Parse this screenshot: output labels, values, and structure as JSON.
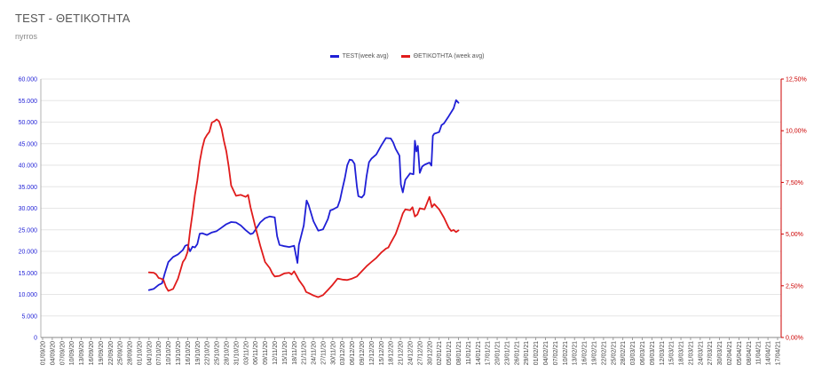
{
  "header": {
    "title": "TEST - ΘΕΤΙΚΟΤΗΤΑ",
    "subtitle": "nyrros"
  },
  "colors": {
    "test": "#1f1fd6",
    "positivity": "#e01b1b",
    "left_axis_text": "#1f1fd6",
    "right_axis_text": "#cc0000",
    "grid": "#e6e6e6"
  },
  "chart_data": {
    "type": "line",
    "title": "TEST - ΘΕΤΙΚΟΤΗΤΑ",
    "subtitle": "nyrros",
    "grid": true,
    "legend_position": "top-center",
    "x_tick_labels": [
      "01/09/20",
      "04/09/20",
      "07/09/20",
      "10/09/20",
      "13/09/20",
      "16/09/20",
      "19/09/20",
      "22/09/20",
      "25/09/20",
      "28/09/20",
      "01/10/20",
      "04/10/20",
      "07/10/20",
      "10/10/20",
      "13/10/20",
      "16/10/20",
      "19/10/20",
      "22/10/20",
      "25/10/20",
      "28/10/20",
      "31/10/20",
      "03/11/20",
      "06/11/20",
      "09/11/20",
      "12/11/20",
      "15/11/20",
      "18/11/20",
      "21/11/20",
      "24/11/20",
      "27/11/20",
      "30/11/20",
      "03/12/20",
      "06/12/20",
      "09/12/20",
      "12/12/20",
      "15/12/20",
      "18/12/20",
      "21/12/20",
      "24/12/20",
      "27/12/20",
      "30/12/20",
      "02/01/21",
      "05/01/21",
      "08/01/21",
      "11/01/21",
      "14/01/21",
      "17/01/21",
      "20/01/21",
      "23/01/21",
      "26/01/21",
      "29/01/21",
      "01/02/21",
      "04/02/21",
      "07/02/21",
      "10/02/21",
      "13/02/21",
      "16/02/21",
      "19/02/21",
      "22/02/21",
      "25/02/21",
      "28/02/21",
      "03/03/21",
      "06/03/21",
      "09/03/21",
      "12/03/21",
      "15/03/21",
      "18/03/21",
      "21/03/21",
      "24/03/21",
      "27/03/21",
      "30/03/21",
      "02/04/21",
      "05/04/21",
      "08/04/21",
      "11/04/21",
      "14/04/21",
      "17/04/21"
    ],
    "y_left": {
      "min": 0,
      "max": 60000,
      "ticks": [
        "0",
        "5.000",
        "10.000",
        "15.000",
        "20.000",
        "25.000",
        "30.000",
        "35.000",
        "40.000",
        "45.000",
        "50.000",
        "55.000",
        "60.000"
      ]
    },
    "y_right": {
      "min": 0,
      "max": 12.5,
      "unit": "%",
      "ticks": [
        "0,00%",
        "2,50%",
        "5,00%",
        "7,50%",
        "10,00%",
        "12,50%"
      ]
    },
    "series": [
      {
        "name": "TEST(week avg)",
        "axis": "left",
        "points": [
          [
            0,
            11000
          ],
          [
            1,
            11300
          ],
          [
            2,
            12200
          ],
          [
            2.7,
            12600
          ],
          [
            3.3,
            15000
          ],
          [
            4,
            17500
          ],
          [
            5,
            18700
          ],
          [
            6,
            19300
          ],
          [
            7,
            20300
          ],
          [
            7.5,
            21300
          ],
          [
            8,
            21500
          ],
          [
            8.5,
            20000
          ],
          [
            9,
            21100
          ],
          [
            9.5,
            20900
          ],
          [
            10,
            21700
          ],
          [
            10.5,
            24100
          ],
          [
            11,
            24200
          ],
          [
            12,
            23800
          ],
          [
            13,
            24400
          ],
          [
            14,
            24700
          ],
          [
            15,
            25500
          ],
          [
            16,
            26300
          ],
          [
            17,
            26800
          ],
          [
            18,
            26700
          ],
          [
            19,
            26000
          ],
          [
            20,
            24900
          ],
          [
            21,
            24000
          ],
          [
            21.5,
            24200
          ],
          [
            22,
            25000
          ],
          [
            23,
            26700
          ],
          [
            24,
            27700
          ],
          [
            25,
            28100
          ],
          [
            26,
            27900
          ],
          [
            26.5,
            23500
          ],
          [
            27,
            21500
          ],
          [
            28,
            21200
          ],
          [
            29,
            21000
          ],
          [
            30,
            21300
          ],
          [
            30.7,
            17300
          ],
          [
            31,
            21500
          ],
          [
            32,
            26000
          ],
          [
            32.6,
            31800
          ],
          [
            33,
            30800
          ],
          [
            34,
            27000
          ],
          [
            35,
            24800
          ],
          [
            36,
            25100
          ],
          [
            37,
            27500
          ],
          [
            37.5,
            29500
          ],
          [
            38,
            29700
          ],
          [
            39,
            30300
          ],
          [
            39.5,
            31900
          ],
          [
            40,
            34500
          ],
          [
            40.5,
            37000
          ],
          [
            41,
            40000
          ],
          [
            41.5,
            41300
          ],
          [
            42,
            41200
          ],
          [
            42.5,
            40300
          ],
          [
            43,
            35000
          ],
          [
            43.3,
            32800
          ],
          [
            44,
            32500
          ],
          [
            44.5,
            33200
          ],
          [
            45,
            37500
          ],
          [
            45.5,
            40700
          ],
          [
            46,
            41500
          ],
          [
            47,
            42500
          ],
          [
            48,
            44500
          ],
          [
            49,
            46300
          ],
          [
            50,
            46200
          ],
          [
            50.5,
            45300
          ],
          [
            51,
            43800
          ],
          [
            51.8,
            42200
          ],
          [
            52.1,
            35500
          ],
          [
            52.5,
            33700
          ],
          [
            53,
            36600
          ],
          [
            54,
            38100
          ],
          [
            54.7,
            37900
          ],
          [
            55,
            45700
          ],
          [
            55.3,
            43200
          ],
          [
            55.6,
            44500
          ],
          [
            56,
            38200
          ],
          [
            56.5,
            39700
          ],
          [
            57,
            40100
          ],
          [
            58,
            40600
          ],
          [
            58.4,
            39900
          ],
          [
            58.7,
            46800
          ],
          [
            59,
            47300
          ],
          [
            60,
            47700
          ],
          [
            60.5,
            49300
          ],
          [
            61,
            49700
          ],
          [
            62,
            51400
          ],
          [
            63,
            53200
          ],
          [
            63.5,
            55100
          ],
          [
            64,
            54500
          ]
        ]
      },
      {
        "name": "ΘΕΤΙΚΟΤΗΤΑ (week avg)",
        "axis": "right",
        "points": [
          [
            0,
            3.15
          ],
          [
            1,
            3.13
          ],
          [
            1.5,
            3.05
          ],
          [
            2,
            2.88
          ],
          [
            2.5,
            2.85
          ],
          [
            3,
            2.78
          ],
          [
            3.5,
            2.45
          ],
          [
            4,
            2.25
          ],
          [
            5,
            2.35
          ],
          [
            6,
            2.85
          ],
          [
            6.5,
            3.25
          ],
          [
            7,
            3.65
          ],
          [
            7.5,
            3.82
          ],
          [
            8,
            4.15
          ],
          [
            8.5,
            5.15
          ],
          [
            9,
            6.0
          ],
          [
            9.5,
            6.9
          ],
          [
            10,
            7.6
          ],
          [
            10.5,
            8.5
          ],
          [
            11,
            9.15
          ],
          [
            11.5,
            9.6
          ],
          [
            12,
            9.8
          ],
          [
            12.5,
            9.95
          ],
          [
            13,
            10.4
          ],
          [
            13.5,
            10.45
          ],
          [
            14,
            10.55
          ],
          [
            14.5,
            10.45
          ],
          [
            15,
            10.1
          ],
          [
            15.5,
            9.5
          ],
          [
            16,
            9.0
          ],
          [
            16.5,
            8.25
          ],
          [
            17,
            7.35
          ],
          [
            18,
            6.85
          ],
          [
            19,
            6.9
          ],
          [
            20,
            6.8
          ],
          [
            20.5,
            6.9
          ],
          [
            21,
            6.3
          ],
          [
            22,
            5.35
          ],
          [
            23,
            4.45
          ],
          [
            24,
            3.65
          ],
          [
            25,
            3.35
          ],
          [
            25.5,
            3.1
          ],
          [
            26,
            2.95
          ],
          [
            27,
            2.98
          ],
          [
            28,
            3.1
          ],
          [
            29,
            3.13
          ],
          [
            29.5,
            3.05
          ],
          [
            30,
            3.2
          ],
          [
            30.5,
            3.0
          ],
          [
            31,
            2.78
          ],
          [
            32,
            2.45
          ],
          [
            32.5,
            2.2
          ],
          [
            33,
            2.15
          ],
          [
            34,
            2.03
          ],
          [
            35,
            1.95
          ],
          [
            36,
            2.05
          ],
          [
            37,
            2.3
          ],
          [
            38,
            2.55
          ],
          [
            39,
            2.85
          ],
          [
            40,
            2.8
          ],
          [
            41,
            2.78
          ],
          [
            42,
            2.85
          ],
          [
            43,
            2.95
          ],
          [
            44,
            3.2
          ],
          [
            45,
            3.45
          ],
          [
            46,
            3.65
          ],
          [
            47,
            3.85
          ],
          [
            48,
            4.1
          ],
          [
            49,
            4.3
          ],
          [
            49.5,
            4.35
          ],
          [
            50,
            4.58
          ],
          [
            51,
            5.0
          ],
          [
            52,
            5.65
          ],
          [
            52.5,
            6.0
          ],
          [
            53,
            6.2
          ],
          [
            54,
            6.15
          ],
          [
            54.5,
            6.3
          ],
          [
            55,
            5.85
          ],
          [
            55.5,
            5.95
          ],
          [
            56,
            6.25
          ],
          [
            57,
            6.2
          ],
          [
            58,
            6.8
          ],
          [
            58.5,
            6.3
          ],
          [
            59,
            6.45
          ],
          [
            60,
            6.2
          ],
          [
            61,
            5.8
          ],
          [
            62,
            5.3
          ],
          [
            62.5,
            5.15
          ],
          [
            63,
            5.2
          ],
          [
            63.5,
            5.1
          ],
          [
            64,
            5.18
          ]
        ]
      }
    ]
  }
}
